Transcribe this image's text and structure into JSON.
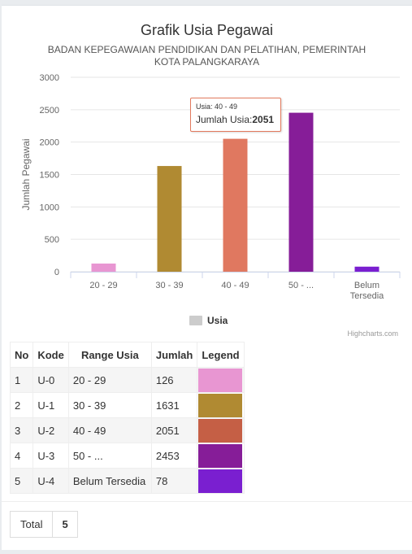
{
  "chart_data": {
    "type": "bar",
    "title": "Grafik Usia Pegawai",
    "subtitle": "BADAN KEPEGAWAIAN PENDIDIKAN DAN PELATIHAN, PEMERINTAH KOTA PALANGKARAYA",
    "ylabel": "Jumlah Pegawai",
    "xlabel": "",
    "ylim": [
      0,
      3000
    ],
    "yticks": [
      0,
      500,
      1000,
      1500,
      2000,
      2500,
      3000
    ],
    "categories": [
      "20 - 29",
      "30 - 39",
      "40 - 49",
      "50 - ...",
      "Belum Tersedia"
    ],
    "series": [
      {
        "name": "Usia",
        "values": [
          126,
          1631,
          2051,
          2453,
          78
        ]
      }
    ],
    "bar_colors": [
      "#e896d2",
      "#b08a32",
      "#e07860",
      "#861d98",
      "#7a1fd0"
    ],
    "legend_position": "bottom",
    "grid": true
  },
  "tooltip": {
    "header": "Usia: 40 - 49",
    "label": "Jumlah Usia:",
    "value": "2051"
  },
  "credits": "Highcharts.com",
  "table": {
    "headers": [
      "No",
      "Kode",
      "Range Usia",
      "Jumlah",
      "Legend"
    ],
    "rows": [
      {
        "no": "1",
        "kode": "U-0",
        "range": "20 - 29",
        "jumlah": "126",
        "color": "#e896d2"
      },
      {
        "no": "2",
        "kode": "U-1",
        "range": "30 - 39",
        "jumlah": "1631",
        "color": "#b08a32"
      },
      {
        "no": "3",
        "kode": "U-2",
        "range": "40 - 49",
        "jumlah": "2051",
        "color": "#c55f45"
      },
      {
        "no": "4",
        "kode": "U-3",
        "range": "50 - ...",
        "jumlah": "2453",
        "color": "#861d98"
      },
      {
        "no": "5",
        "kode": "U-4",
        "range": "Belum Tersedia",
        "jumlah": "78",
        "color": "#7a1fd0"
      }
    ]
  },
  "total": {
    "label": "Total",
    "value": "5"
  }
}
